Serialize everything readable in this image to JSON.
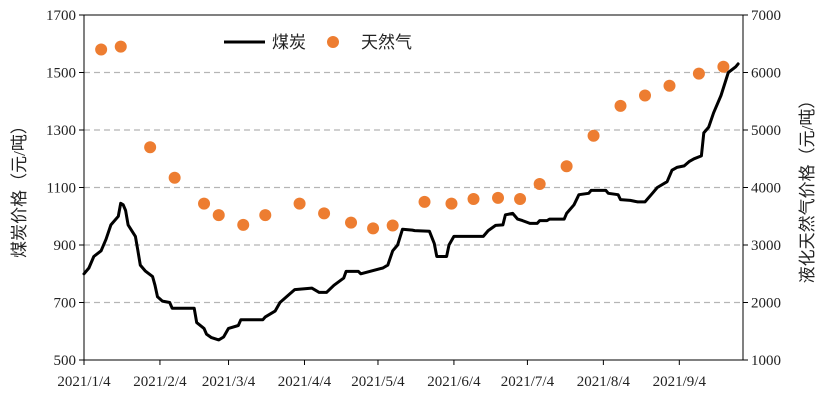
{
  "chart_data": {
    "type": "line",
    "title": "",
    "xlabel": "",
    "ylabel_left": "煤炭价格（元/吨）",
    "ylabel_right": "液化天然气价格（元/吨）",
    "x_tick_labels": [
      "2021/1/4",
      "2021/2/4",
      "2021/3/4",
      "2021/4/4",
      "2021/5/4",
      "2021/6/4",
      "2021/7/4",
      "2021/8/4",
      "2021/9/4"
    ],
    "x_ticks": [
      "2021-01-04",
      "2021-02-04",
      "2021-03-04",
      "2021-04-04",
      "2021-05-04",
      "2021-06-04",
      "2021-07-04",
      "2021-08-04",
      "2021-09-04"
    ],
    "x_range": [
      "2021-01-04",
      "2021-09-30"
    ],
    "y_left": {
      "min": 500,
      "max": 1700,
      "ticks": [
        500,
        700,
        900,
        1100,
        1300,
        1500,
        1700
      ],
      "tick_labels": [
        "500",
        "700",
        "900",
        "1100",
        "1300",
        "1500",
        "1700"
      ]
    },
    "y_right": {
      "min": 1000,
      "max": 7000,
      "ticks": [
        1000,
        2000,
        3000,
        4000,
        5000,
        6000,
        7000
      ],
      "tick_labels": [
        "1000",
        "2000",
        "3000",
        "4000",
        "5000",
        "6000",
        "7000"
      ]
    },
    "gridlines": "horizontal-dashed",
    "legend": {
      "position": "top-left",
      "entries": [
        {
          "label": "煤炭",
          "style": "line",
          "color": "#000000"
        },
        {
          "label": "天然气",
          "style": "marker",
          "color": "#ED7D31"
        }
      ]
    },
    "series": [
      {
        "name": "煤炭",
        "type": "line",
        "axis": "left",
        "color": "#000000",
        "points": [
          [
            "2021-01-04",
            800
          ],
          [
            "2021-01-06",
            820
          ],
          [
            "2021-01-08",
            860
          ],
          [
            "2021-01-11",
            880
          ],
          [
            "2021-01-13",
            920
          ],
          [
            "2021-01-15",
            970
          ],
          [
            "2021-01-18",
            1000
          ],
          [
            "2021-01-19",
            1045
          ],
          [
            "2021-01-20",
            1040
          ],
          [
            "2021-01-21",
            1020
          ],
          [
            "2021-01-22",
            970
          ],
          [
            "2021-01-25",
            930
          ],
          [
            "2021-01-26",
            880
          ],
          [
            "2021-01-27",
            830
          ],
          [
            "2021-01-29",
            810
          ],
          [
            "2021-02-01",
            790
          ],
          [
            "2021-02-02",
            760
          ],
          [
            "2021-02-03",
            720
          ],
          [
            "2021-02-05",
            705
          ],
          [
            "2021-02-08",
            700
          ],
          [
            "2021-02-09",
            680
          ],
          [
            "2021-02-18",
            680
          ],
          [
            "2021-02-19",
            630
          ],
          [
            "2021-02-22",
            610
          ],
          [
            "2021-02-23",
            590
          ],
          [
            "2021-02-25",
            578
          ],
          [
            "2021-02-28",
            570
          ],
          [
            "2021-03-02",
            580
          ],
          [
            "2021-03-04",
            610
          ],
          [
            "2021-03-08",
            620
          ],
          [
            "2021-03-09",
            640
          ],
          [
            "2021-03-18",
            640
          ],
          [
            "2021-03-19",
            650
          ],
          [
            "2021-03-23",
            670
          ],
          [
            "2021-03-25",
            700
          ],
          [
            "2021-03-29",
            730
          ],
          [
            "2021-03-31",
            745
          ],
          [
            "2021-04-07",
            750
          ],
          [
            "2021-04-10",
            735
          ],
          [
            "2021-04-13",
            735
          ],
          [
            "2021-04-16",
            760
          ],
          [
            "2021-04-20",
            785
          ],
          [
            "2021-04-21",
            808
          ],
          [
            "2021-04-26",
            808
          ],
          [
            "2021-04-27",
            800
          ],
          [
            "2021-05-06",
            820
          ],
          [
            "2021-05-08",
            830
          ],
          [
            "2021-05-10",
            880
          ],
          [
            "2021-05-12",
            900
          ],
          [
            "2021-05-14",
            955
          ],
          [
            "2021-05-18",
            952
          ],
          [
            "2021-05-19",
            950
          ],
          [
            "2021-05-25",
            948
          ],
          [
            "2021-05-27",
            905
          ],
          [
            "2021-05-28",
            860
          ],
          [
            "2021-06-01",
            860
          ],
          [
            "2021-06-02",
            900
          ],
          [
            "2021-06-04",
            930
          ],
          [
            "2021-06-16",
            930
          ],
          [
            "2021-06-18",
            950
          ],
          [
            "2021-06-21",
            968
          ],
          [
            "2021-06-24",
            970
          ],
          [
            "2021-06-25",
            1005
          ],
          [
            "2021-06-28",
            1010
          ],
          [
            "2021-06-30",
            990
          ],
          [
            "2021-07-02",
            985
          ],
          [
            "2021-07-05",
            975
          ],
          [
            "2021-07-08",
            975
          ],
          [
            "2021-07-09",
            985
          ],
          [
            "2021-07-12",
            985
          ],
          [
            "2021-07-13",
            990
          ],
          [
            "2021-07-19",
            990
          ],
          [
            "2021-07-20",
            1010
          ],
          [
            "2021-07-23",
            1040
          ],
          [
            "2021-07-25",
            1075
          ],
          [
            "2021-07-29",
            1080
          ],
          [
            "2021-07-30",
            1090
          ],
          [
            "2021-08-05",
            1090
          ],
          [
            "2021-08-06",
            1080
          ],
          [
            "2021-08-10",
            1075
          ],
          [
            "2021-08-11",
            1058
          ],
          [
            "2021-08-15",
            1055
          ],
          [
            "2021-08-18",
            1050
          ],
          [
            "2021-08-21",
            1050
          ],
          [
            "2021-08-24",
            1080
          ],
          [
            "2021-08-26",
            1100
          ],
          [
            "2021-08-30",
            1120
          ],
          [
            "2021-09-01",
            1160
          ],
          [
            "2021-09-03",
            1170
          ],
          [
            "2021-09-06",
            1175
          ],
          [
            "2021-09-08",
            1190
          ],
          [
            "2021-09-10",
            1200
          ],
          [
            "2021-09-13",
            1210
          ],
          [
            "2021-09-14",
            1290
          ],
          [
            "2021-09-16",
            1310
          ],
          [
            "2021-09-18",
            1360
          ],
          [
            "2021-09-21",
            1420
          ],
          [
            "2021-09-24",
            1500
          ],
          [
            "2021-09-27",
            1520
          ],
          [
            "2021-09-28",
            1530
          ]
        ]
      },
      {
        "name": "天然气",
        "type": "scatter",
        "axis": "right",
        "color": "#ED7D31",
        "points": [
          [
            "2021-01-11",
            6400
          ],
          [
            "2021-01-19",
            6450
          ],
          [
            "2021-01-31",
            4700
          ],
          [
            "2021-02-10",
            4170
          ],
          [
            "2021-02-22",
            3720
          ],
          [
            "2021-02-28",
            3520
          ],
          [
            "2021-03-10",
            3350
          ],
          [
            "2021-03-19",
            3520
          ],
          [
            "2021-04-02",
            3720
          ],
          [
            "2021-04-12",
            3550
          ],
          [
            "2021-04-23",
            3390
          ],
          [
            "2021-05-02",
            3290
          ],
          [
            "2021-05-10",
            3340
          ],
          [
            "2021-05-23",
            3750
          ],
          [
            "2021-06-03",
            3720
          ],
          [
            "2021-06-12",
            3800
          ],
          [
            "2021-06-22",
            3820
          ],
          [
            "2021-07-01",
            3800
          ],
          [
            "2021-07-09",
            4060
          ],
          [
            "2021-07-20",
            4370
          ],
          [
            "2021-07-31",
            4900
          ],
          [
            "2021-08-11",
            5420
          ],
          [
            "2021-08-21",
            5600
          ],
          [
            "2021-08-31",
            5770
          ],
          [
            "2021-09-12",
            5980
          ],
          [
            "2021-09-22",
            6100
          ]
        ]
      }
    ]
  }
}
